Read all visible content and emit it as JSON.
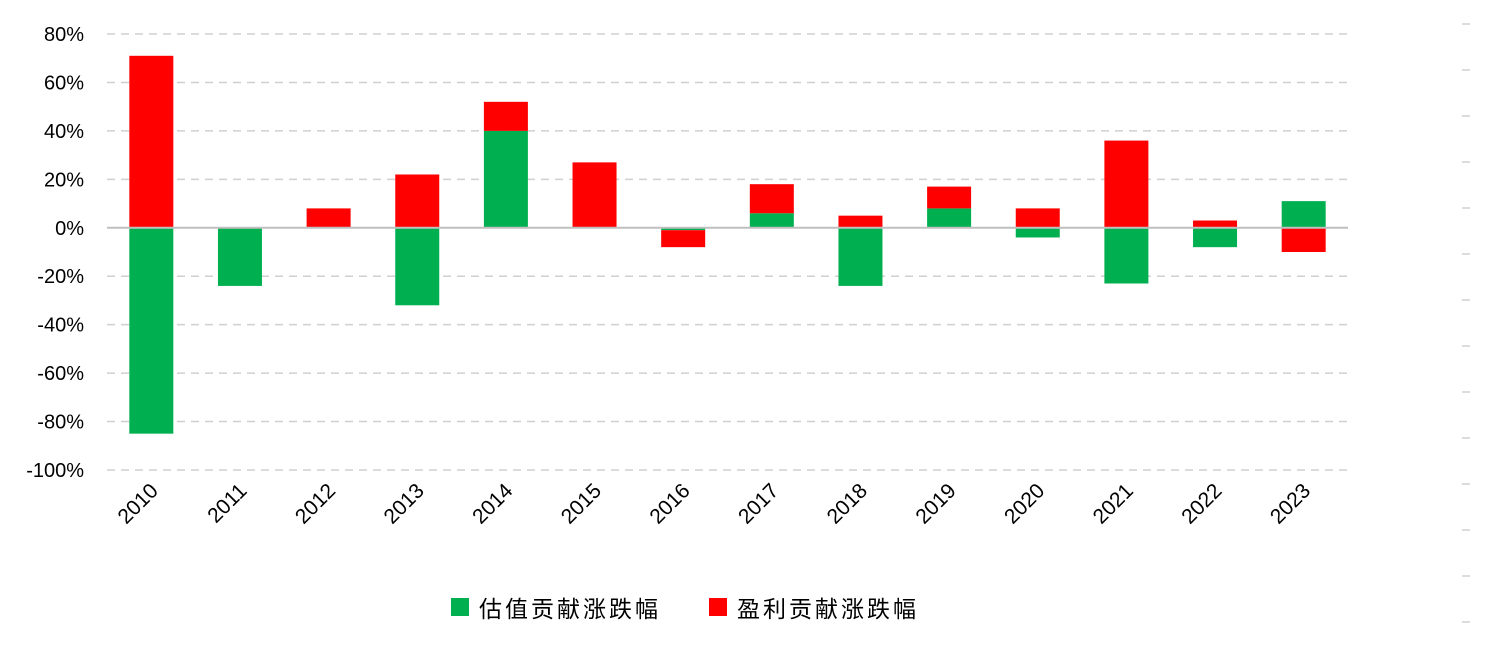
{
  "chart_data": {
    "type": "bar",
    "stacked": true,
    "categories": [
      "2010",
      "2011",
      "2012",
      "2013",
      "2014",
      "2015",
      "2016",
      "2017",
      "2018",
      "2019",
      "2020",
      "2021",
      "2022",
      "2023"
    ],
    "series": [
      {
        "name": "估值贡献涨跌幅",
        "color": "#00B050",
        "values": [
          -85,
          -24,
          0,
          -32,
          40,
          0,
          -1,
          6,
          -24,
          8,
          -4,
          -23,
          -8,
          11
        ]
      },
      {
        "name": "盈利贡献涨跌幅",
        "color": "#FF0000",
        "values": [
          71,
          0,
          8,
          22,
          12,
          27,
          -7,
          12,
          5,
          9,
          8,
          36,
          3,
          -10
        ]
      }
    ],
    "ylim": [
      -100,
      80
    ],
    "ytick_labels": [
      "80%",
      "60%",
      "40%",
      "20%",
      "0%",
      "-20%",
      "-40%",
      "-60%",
      "-80%",
      "-100%"
    ],
    "ytick_values": [
      80,
      60,
      40,
      20,
      0,
      -20,
      -40,
      -60,
      -80,
      -100
    ],
    "grid": true,
    "legend_position": "bottom",
    "title": "",
    "xlabel": "",
    "ylabel": ""
  }
}
